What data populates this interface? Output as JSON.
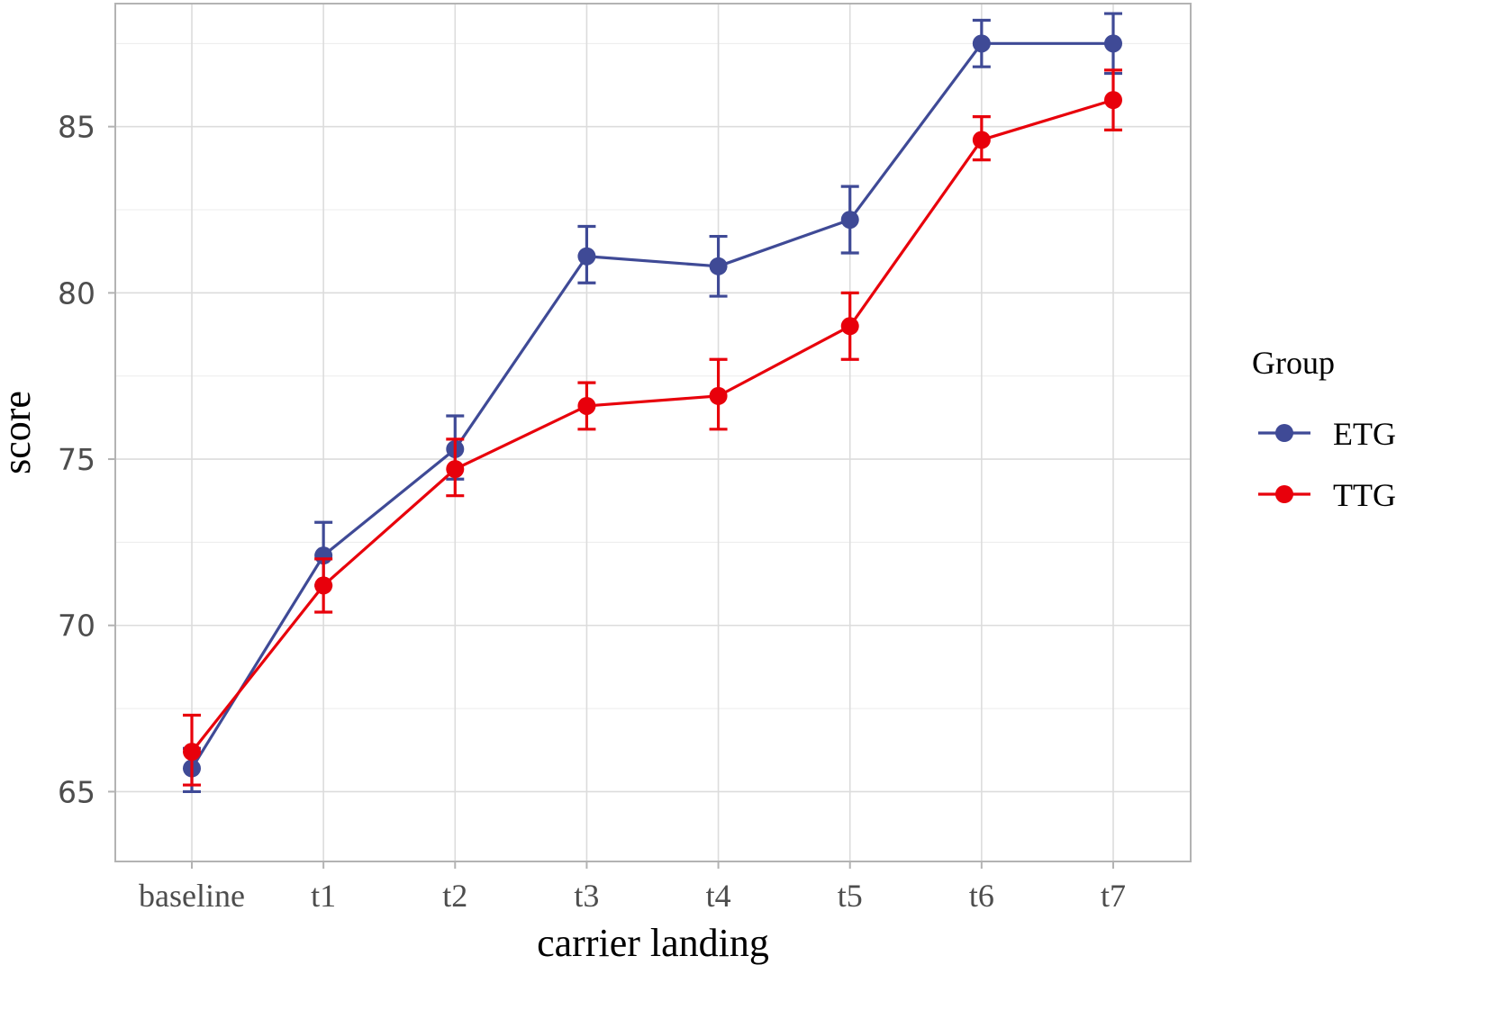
{
  "chart_data": {
    "type": "line",
    "categories": [
      "baseline",
      "t1",
      "t2",
      "t3",
      "t4",
      "t5",
      "t6",
      "t7"
    ],
    "xlabel": "carrier landing",
    "ylabel": "score",
    "ylim": [
      62.9,
      88.7
    ],
    "yticks": [
      65,
      70,
      75,
      80,
      85
    ],
    "grid": true,
    "legend": {
      "title": "Group",
      "position": "right"
    },
    "series": [
      {
        "name": "ETG",
        "color": "#3f4a96",
        "values": [
          65.7,
          72.1,
          75.3,
          81.1,
          80.8,
          82.2,
          87.5,
          87.5
        ],
        "err_low": [
          65.0,
          71.2,
          74.4,
          80.3,
          79.9,
          81.2,
          86.8,
          86.6
        ],
        "err_high": [
          66.3,
          73.1,
          76.3,
          82.0,
          81.7,
          83.2,
          88.2,
          88.4
        ]
      },
      {
        "name": "TTG",
        "color": "#e8000b",
        "values": [
          66.2,
          71.2,
          74.7,
          76.6,
          76.9,
          79.0,
          84.6,
          85.8
        ],
        "err_low": [
          65.2,
          70.4,
          73.9,
          75.9,
          75.9,
          78.0,
          84.0,
          84.9
        ],
        "err_high": [
          67.3,
          72.0,
          75.6,
          77.3,
          78.0,
          80.0,
          85.3,
          86.7
        ]
      }
    ]
  }
}
